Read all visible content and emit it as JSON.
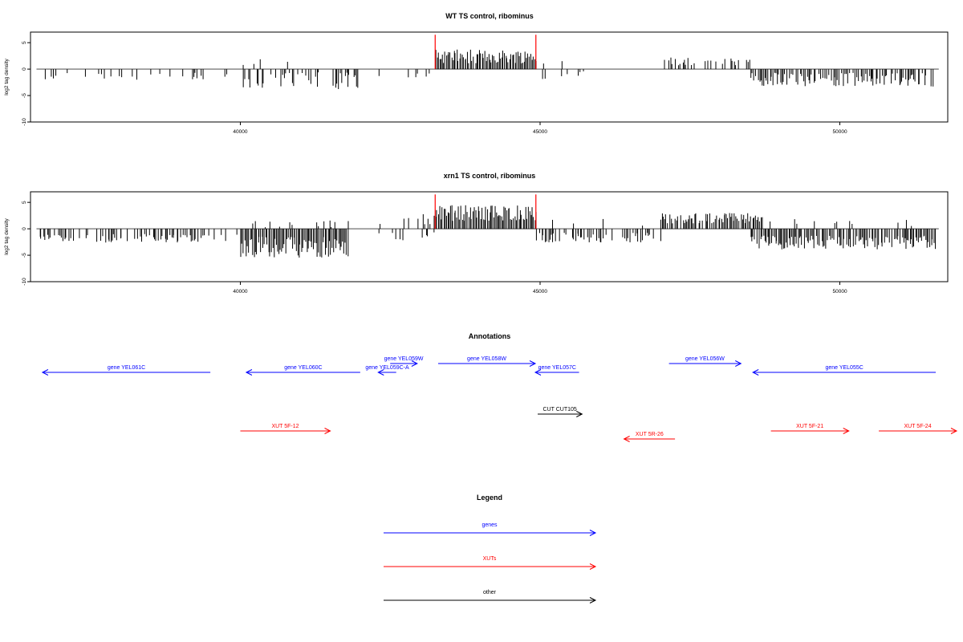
{
  "colors": {
    "genes": "#0000ff",
    "XUTs": "#ff0000",
    "other": "#000000",
    "marker": "#ff0000",
    "bar": "#000000"
  },
  "chart_data": [
    {
      "type": "bar",
      "title": "WT TS control, ribominus",
      "ylabel": "log2 tag density",
      "xlim": [
        36500,
        51800
      ],
      "ylim": [
        -10,
        7
      ],
      "x_ticks": [
        40000,
        45000,
        50000
      ],
      "y_ticks": [
        -10,
        -5,
        0,
        5
      ],
      "x_tick_labels": [
        "40000",
        "45000",
        "50000"
      ],
      "y_tick_labels": [
        "-10",
        "-5",
        "0",
        "5"
      ],
      "markers_x": [
        43250,
        44930
      ],
      "segments": [
        {
          "start": 36600,
          "end": 39500,
          "sign": -1,
          "density": 0.22,
          "mean": 1.3,
          "spread": 0.8
        },
        {
          "start": 39500,
          "end": 40000,
          "sign": -1,
          "density": 0.15,
          "mean": 1.0,
          "spread": 0.8
        },
        {
          "start": 40000,
          "end": 42000,
          "sign": -1,
          "density": 0.5,
          "mean": 2.2,
          "spread": 1.6
        },
        {
          "start": 40000,
          "end": 41200,
          "sign": 1,
          "density": 0.05,
          "mean": 1.3,
          "spread": 0.7
        },
        {
          "start": 42000,
          "end": 43200,
          "sign": -1,
          "density": 0.05,
          "mean": 1.0,
          "spread": 0.6
        },
        {
          "start": 43250,
          "end": 44930,
          "sign": 1,
          "density": 0.95,
          "mean": 2.4,
          "spread": 1.3
        },
        {
          "start": 44930,
          "end": 46000,
          "sign": -1,
          "density": 0.06,
          "mean": 1.2,
          "spread": 0.8
        },
        {
          "start": 44930,
          "end": 45500,
          "sign": 1,
          "density": 0.05,
          "mean": 1.3,
          "spread": 0.6
        },
        {
          "start": 46700,
          "end": 47100,
          "sign": -1,
          "density": 0.04,
          "mean": 1.0,
          "spread": 0.5
        },
        {
          "start": 47000,
          "end": 48500,
          "sign": 1,
          "density": 0.45,
          "mean": 1.5,
          "spread": 0.8
        },
        {
          "start": 48500,
          "end": 51600,
          "sign": -1,
          "density": 0.7,
          "mean": 2.0,
          "spread": 1.3
        }
      ]
    },
    {
      "type": "bar",
      "title": "xrn1 TS control, ribominus",
      "ylabel": "log2 tag density",
      "xlim": [
        36500,
        51800
      ],
      "ylim": [
        -10,
        7
      ],
      "x_ticks": [
        40000,
        45000,
        50000
      ],
      "y_ticks": [
        -10,
        -5,
        0,
        5
      ],
      "x_tick_labels": [
        "40000",
        "45000",
        "50000"
      ],
      "y_tick_labels": [
        "-10",
        "-5",
        "0",
        "5"
      ],
      "markers_x": [
        43250,
        44930
      ],
      "segments": [
        {
          "start": 36600,
          "end": 39500,
          "sign": -1,
          "density": 0.45,
          "mean": 1.8,
          "spread": 0.8
        },
        {
          "start": 39500,
          "end": 40000,
          "sign": -1,
          "density": 0.2,
          "mean": 1.5,
          "spread": 0.8
        },
        {
          "start": 40000,
          "end": 41800,
          "sign": -1,
          "density": 1.0,
          "mean": 3.5,
          "spread": 2.0
        },
        {
          "start": 40200,
          "end": 41800,
          "sign": 1,
          "density": 0.15,
          "mean": 1.0,
          "spread": 0.8
        },
        {
          "start": 42300,
          "end": 43250,
          "sign": 1,
          "density": 0.2,
          "mean": 1.8,
          "spread": 1.2
        },
        {
          "start": 42300,
          "end": 43250,
          "sign": -1,
          "density": 0.15,
          "mean": 1.4,
          "spread": 0.8
        },
        {
          "start": 43250,
          "end": 44930,
          "sign": 1,
          "density": 1.0,
          "mean": 3.0,
          "spread": 1.5
        },
        {
          "start": 44930,
          "end": 47000,
          "sign": -1,
          "density": 0.5,
          "mean": 1.6,
          "spread": 1.0
        },
        {
          "start": 45000,
          "end": 47000,
          "sign": 1,
          "density": 0.08,
          "mean": 1.2,
          "spread": 0.8
        },
        {
          "start": 47000,
          "end": 48700,
          "sign": 1,
          "density": 0.9,
          "mean": 2.0,
          "spread": 1.0
        },
        {
          "start": 48500,
          "end": 51600,
          "sign": -1,
          "density": 0.9,
          "mean": 2.6,
          "spread": 1.3
        },
        {
          "start": 48500,
          "end": 51600,
          "sign": 1,
          "density": 0.08,
          "mean": 1.2,
          "spread": 0.8
        }
      ]
    }
  ],
  "annotations": {
    "title": "Annotations",
    "xlim": [
      36500,
      51800
    ],
    "items": [
      {
        "label": "gene YEL061C",
        "kind": "genes",
        "start": 36700,
        "end": 39500,
        "strand": "-",
        "row": 1
      },
      {
        "label": "gene YEL060C",
        "kind": "genes",
        "start": 40100,
        "end": 42000,
        "strand": "-",
        "row": 1
      },
      {
        "label": "gene YEL059W",
        "kind": "genes",
        "start": 42500,
        "end": 42950,
        "strand": "+",
        "row": 0
      },
      {
        "label": "gene YEL059C-A",
        "kind": "genes",
        "start": 42300,
        "end": 42600,
        "strand": "-",
        "row": 1
      },
      {
        "label": "gene YEL058W",
        "kind": "genes",
        "start": 43300,
        "end": 44920,
        "strand": "+",
        "row": 0
      },
      {
        "label": "gene YEL057C",
        "kind": "genes",
        "start": 44920,
        "end": 45650,
        "strand": "-",
        "row": 1
      },
      {
        "label": "gene YEL056W",
        "kind": "genes",
        "start": 47150,
        "end": 48350,
        "strand": "+",
        "row": 0
      },
      {
        "label": "gene YEL055C",
        "kind": "genes",
        "start": 48550,
        "end": 51600,
        "strand": "-",
        "row": 1
      },
      {
        "label": "CUT CUT105",
        "kind": "other",
        "start": 44960,
        "end": 45700,
        "strand": "+",
        "row": 2
      },
      {
        "label": "XUT 5F-12",
        "kind": "XUTs",
        "start": 40000,
        "end": 41500,
        "strand": "+",
        "row": 3
      },
      {
        "label": "XUT 5R-26",
        "kind": "XUTs",
        "start": 46400,
        "end": 47250,
        "strand": "-",
        "row": 4
      },
      {
        "label": "XUT 5F-21",
        "kind": "XUTs",
        "start": 48850,
        "end": 50150,
        "strand": "+",
        "row": 3
      },
      {
        "label": "XUT 5F-24",
        "kind": "XUTs",
        "start": 50650,
        "end": 52050,
        "strand": "+",
        "row": 3
      }
    ]
  },
  "legend": {
    "title": "Legend",
    "items": [
      {
        "label": "genes",
        "kind": "genes"
      },
      {
        "label": "XUTs",
        "kind": "XUTs"
      },
      {
        "label": "other",
        "kind": "other"
      }
    ]
  }
}
